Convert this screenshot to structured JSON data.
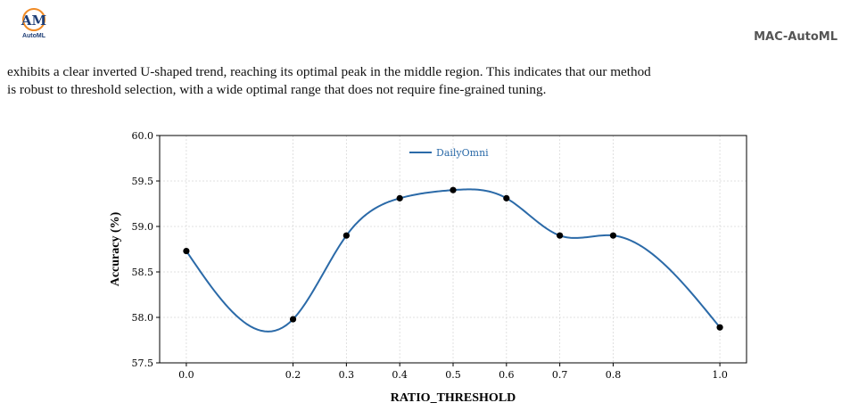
{
  "header": {
    "logo_text": "AutoML",
    "title": "MAC-AutoML"
  },
  "body_text": {
    "lines": [
      "exhibits a clear inverted U-shaped trend, reaching its optimal peak in the middle region. This indicates that our method",
      "is robust to threshold selection, with a wide optimal range that does not require fine-grained tuning."
    ]
  },
  "colors": {
    "series": "#2b6aa8",
    "marker": "#000000",
    "grid": "#d9d9d9",
    "logo_blue": "#1f3f77",
    "logo_orange": "#f08a24"
  },
  "chart_data": {
    "type": "line",
    "xlabel": "RATIO_THRESHOLD",
    "ylabel": "Accuracy (%)",
    "xlim": [
      -0.05,
      1.05
    ],
    "ylim": [
      57.5,
      60.0
    ],
    "xticks": [
      "0.0",
      "0.2",
      "0.3",
      "0.4",
      "0.5",
      "0.6",
      "0.7",
      "0.8",
      "1.0"
    ],
    "yticks": [
      "57.5",
      "58.0",
      "58.5",
      "59.0",
      "59.5",
      "60.0"
    ],
    "grid": true,
    "legend_position": "top-center",
    "smoothed": true,
    "series": [
      {
        "name": "DailyOmni",
        "x": [
          0.0,
          0.2,
          0.3,
          0.4,
          0.5,
          0.6,
          0.7,
          0.8,
          1.0
        ],
        "y": [
          58.73,
          57.98,
          58.9,
          59.31,
          59.4,
          59.31,
          58.9,
          58.9,
          57.89
        ]
      }
    ]
  }
}
